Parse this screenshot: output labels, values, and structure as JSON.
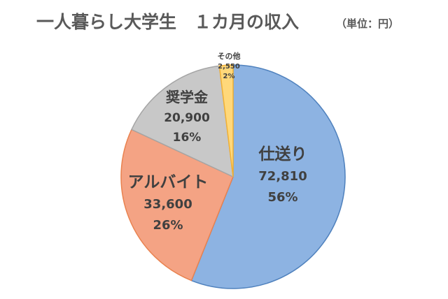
{
  "chart_data": {
    "type": "pie",
    "title": "一人暮らし大学生　１カ月の収入",
    "unit": "（単位：円）",
    "slices": [
      {
        "name": "仕送り",
        "value": 72810,
        "value_label": "72,810",
        "percent_label": "56%",
        "color": "#8DB3E2",
        "stroke": "#4F81BD"
      },
      {
        "name": "アルバイト",
        "value": 33600,
        "value_label": "33,600",
        "percent_label": "26%",
        "color": "#F4A384",
        "stroke": "#E9824F"
      },
      {
        "name": "奨学金",
        "value": 20900,
        "value_label": "20,900",
        "percent_label": "16%",
        "color": "#C8C8C8",
        "stroke": "#A5A5A5"
      },
      {
        "name": "その他",
        "value": 2550,
        "value_label": "2,550",
        "percent_label": "2%",
        "color": "#FFD87A",
        "stroke": "#F2B134"
      }
    ]
  }
}
